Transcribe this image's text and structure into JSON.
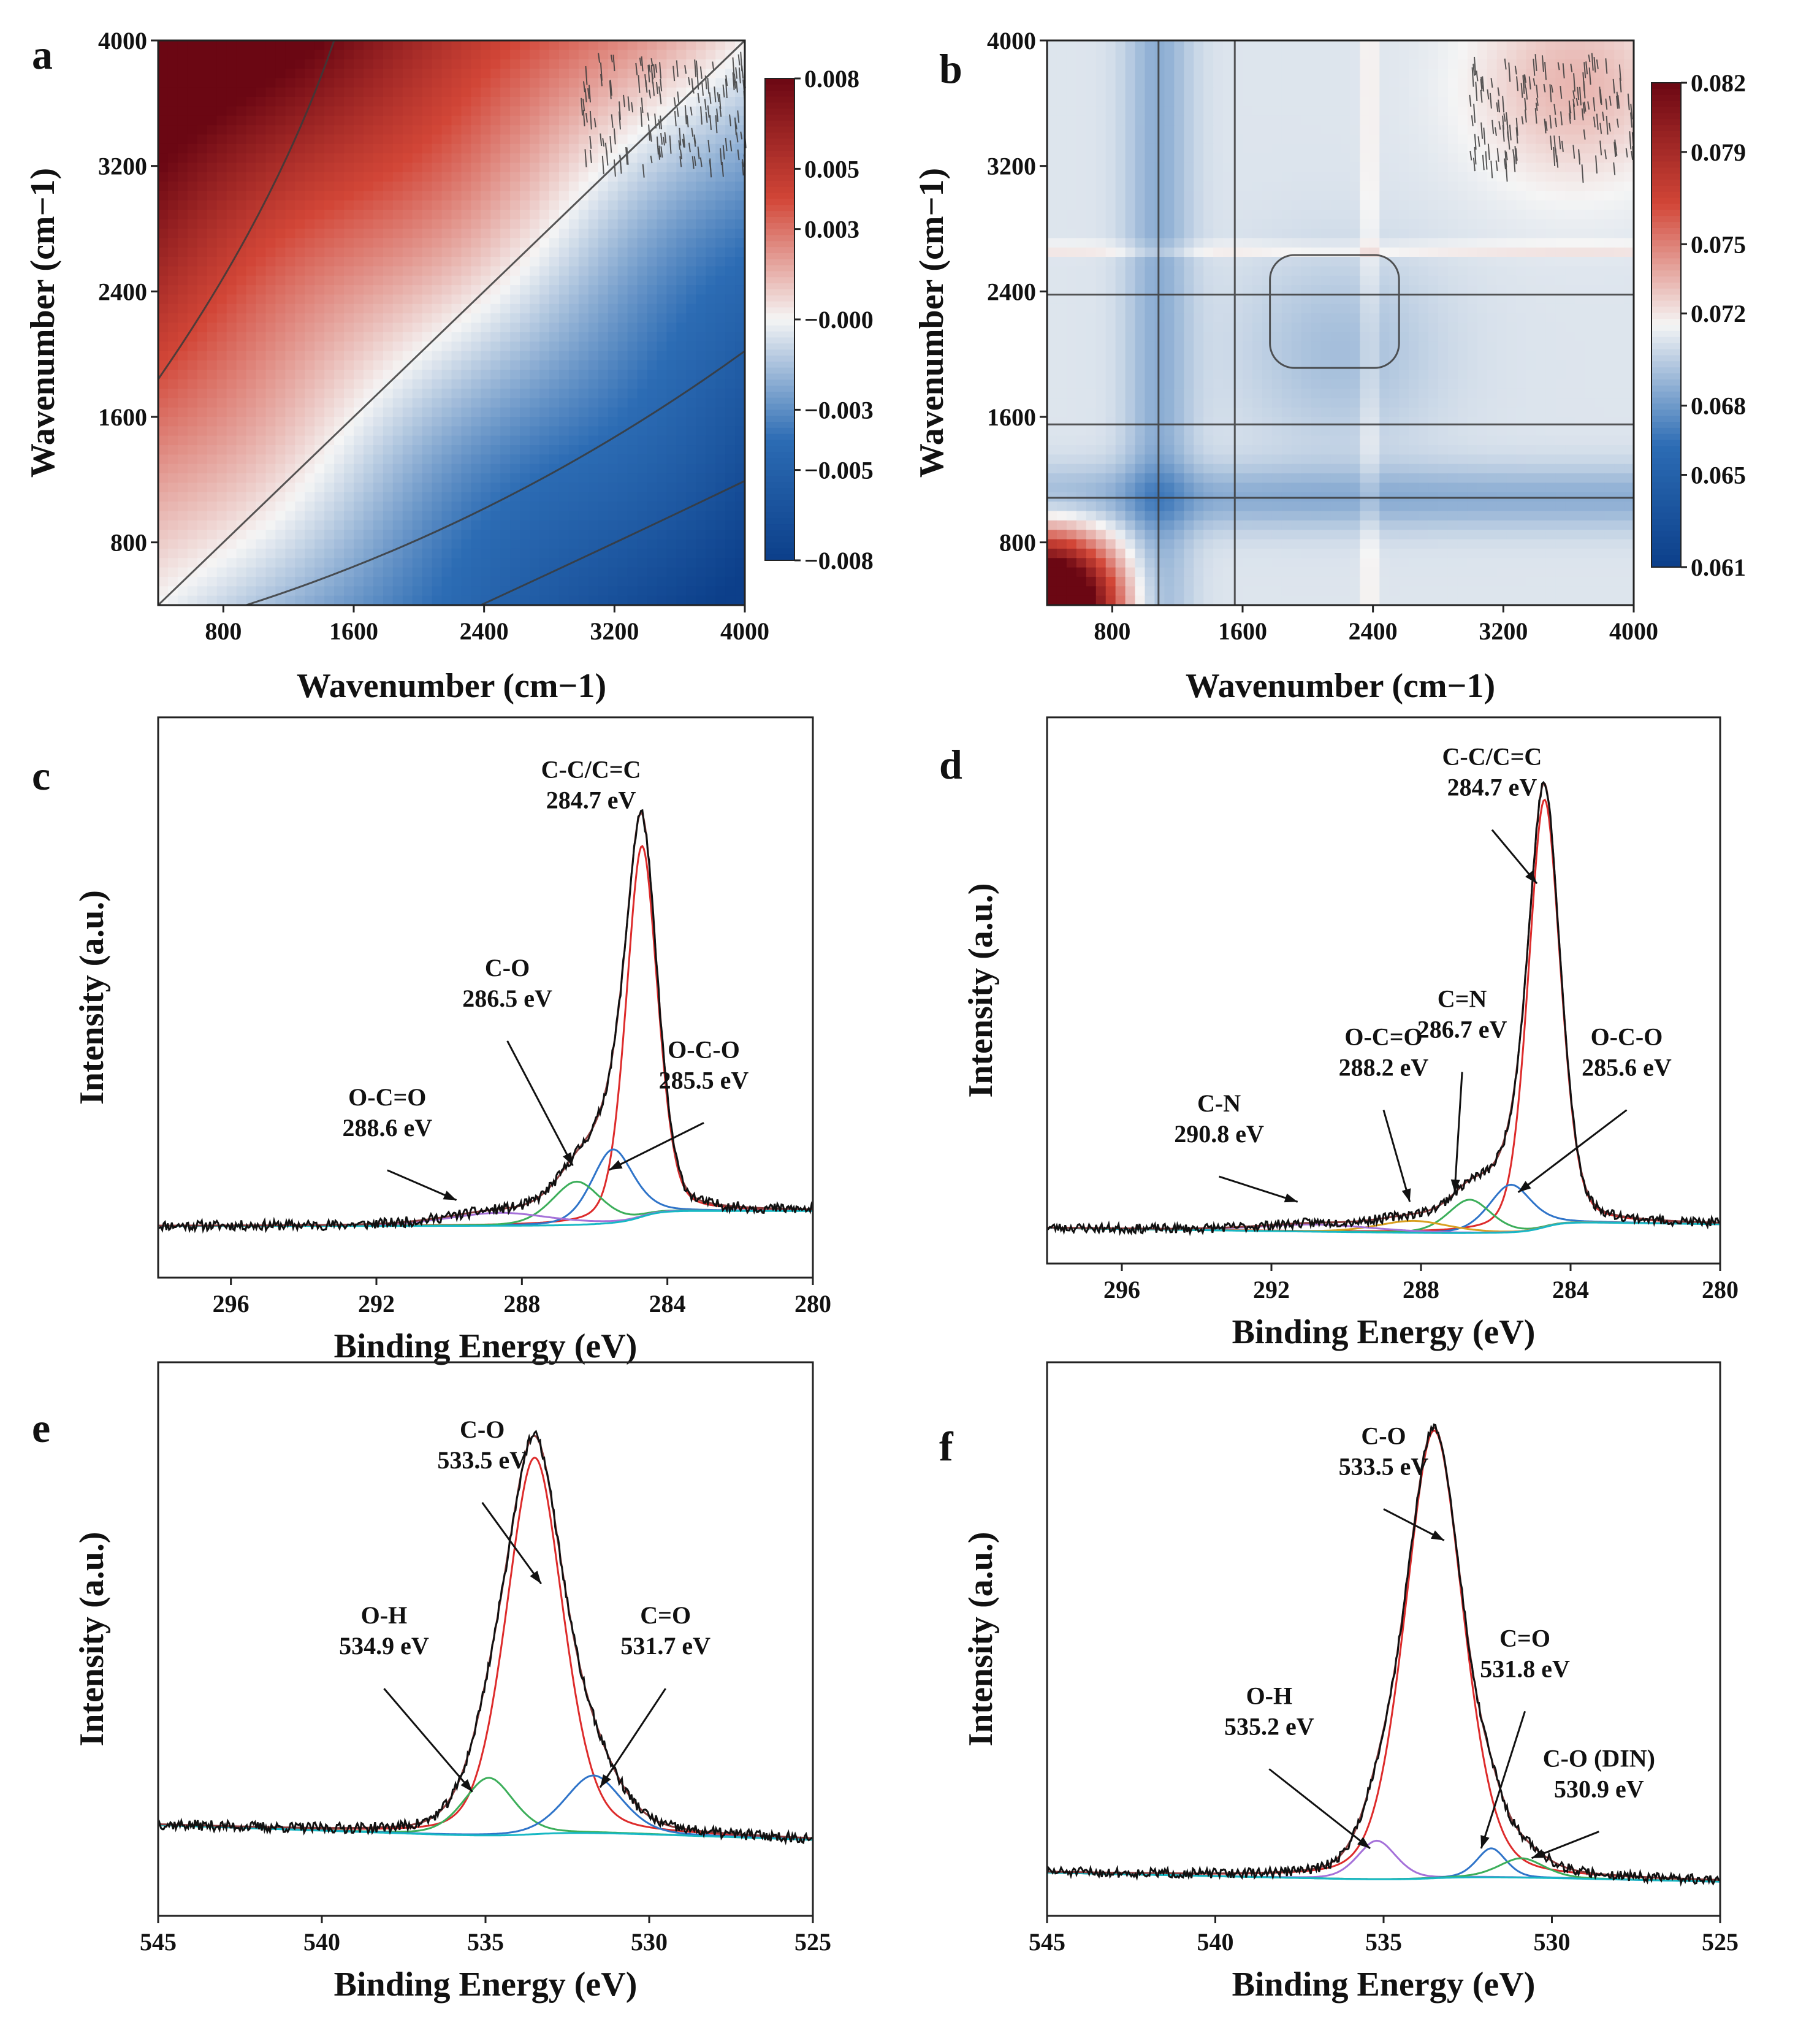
{
  "colors": {
    "red": "#dd2b2b",
    "blue": "#2f74c9",
    "green": "#3cae5a",
    "purple": "#a571d9",
    "orange": "#d9a020",
    "teal": "#17b8c4",
    "brown": "#8b3f3f",
    "data": "#111111",
    "map_low": "#0c3f8a",
    "map_mid": "#f5f5f5",
    "map_high": "#6b0713",
    "contour": "#3a3a3a"
  },
  "chart_data": [
    {
      "panel": "a",
      "type": "heatmap",
      "description_id": "2d-correlation-map-a",
      "xlabel": "Wavenumber (cm−1)",
      "ylabel": "Wavenumber (cm−1)",
      "xlim": [
        400,
        4000
      ],
      "ylim": [
        400,
        4000
      ],
      "xticks": [
        800,
        1600,
        2400,
        3200,
        4000
      ],
      "xtick_labels": [
        "800",
        "1600",
        "2400",
        "3200",
        "4000"
      ],
      "yticks": [
        800,
        1600,
        2400,
        3200,
        4000
      ],
      "ytick_labels": [
        "800",
        "1600",
        "2400",
        "3200",
        "4000"
      ],
      "colorbar": {
        "min": -0.008,
        "max": 0.008,
        "tick_values": [
          0.008,
          0.005,
          0.003,
          0.0,
          -0.003,
          -0.005,
          -0.008
        ],
        "tick_labels": [
          "0.008",
          "0.005",
          "0.003",
          "−0.000",
          "−0.003",
          "−0.005",
          "−0.008"
        ]
      },
      "pattern": "asynchronous"
    },
    {
      "panel": "b",
      "type": "heatmap",
      "description_id": "2d-correlation-map-b",
      "xlabel": "Wavenumber (cm−1)",
      "ylabel": "Wavenumber (cm−1)",
      "xlim": [
        400,
        4000
      ],
      "ylim": [
        400,
        4000
      ],
      "xticks": [
        800,
        1600,
        2400,
        3200,
        4000
      ],
      "xtick_labels": [
        "800",
        "1600",
        "2400",
        "3200",
        "4000"
      ],
      "yticks": [
        800,
        1600,
        2400,
        3200,
        4000
      ],
      "ytick_labels": [
        "800",
        "1600",
        "2400",
        "3200",
        "4000"
      ],
      "colorbar": {
        "min": 0.061,
        "max": 0.082,
        "tick_values": [
          0.082,
          0.079,
          0.075,
          0.072,
          0.068,
          0.065,
          0.061
        ],
        "tick_labels": [
          "0.082",
          "0.079",
          "0.075",
          "0.072",
          "0.068",
          "0.065",
          "0.061"
        ]
      },
      "pattern": "synchronous"
    },
    {
      "panel": "c",
      "type": "line",
      "xlabel": "Binding Energy (eV)",
      "ylabel": "Intensity (a.u.)",
      "xlim": [
        298,
        280
      ],
      "xticks": [
        296,
        292,
        288,
        284,
        280
      ],
      "xtick_labels": [
        "296",
        "292",
        "288",
        "284",
        "280"
      ],
      "ylim": [
        -0.15,
        1.15
      ],
      "baseline": {
        "left": 0.0,
        "right": 0.0,
        "shirley": 0.06
      },
      "noise": 0.012,
      "seed": 11,
      "peaks": [
        {
          "name": "C-C/C=C",
          "center": 284.7,
          "height": 0.86,
          "width": 0.45,
          "color": "#dd2b2b"
        },
        {
          "name": "O-C-O",
          "center": 285.5,
          "height": 0.17,
          "width": 0.6,
          "color": "#2f74c9"
        },
        {
          "name": "C-O",
          "center": 286.5,
          "height": 0.1,
          "width": 0.7,
          "color": "#3cae5a"
        },
        {
          "name": "O-C=O",
          "center": 288.6,
          "height": 0.03,
          "width": 1.5,
          "color": "#a571d9"
        }
      ],
      "annotations": [
        {
          "lines": [
            "C-C/C=C",
            "284.7 eV"
          ],
          "text_at": [
            286.1,
            1.01
          ],
          "arrow_to": null
        },
        {
          "lines": [
            "C-O",
            "286.5 eV"
          ],
          "text_at": [
            288.4,
            0.55
          ],
          "arrow_to": [
            286.6,
            0.11
          ]
        },
        {
          "lines": [
            "O-C-O",
            "285.5 eV"
          ],
          "text_at": [
            283.0,
            0.36
          ],
          "arrow_to": [
            285.6,
            0.1
          ]
        },
        {
          "lines": [
            "O-C=O",
            "288.6 eV"
          ],
          "text_at": [
            291.7,
            0.25
          ],
          "arrow_to": [
            289.8,
            0.03
          ]
        }
      ]
    },
    {
      "panel": "d",
      "type": "line",
      "xlabel": "Binding Energy (eV)",
      "ylabel": "Intensity (a.u.)",
      "xlim": [
        298,
        280
      ],
      "xticks": [
        296,
        292,
        288,
        284,
        280
      ],
      "xtick_labels": [
        "296",
        "292",
        "288",
        "284",
        "280"
      ],
      "ylim": [
        -0.1,
        1.05
      ],
      "baseline": {
        "left": 0.0,
        "right": -0.02,
        "shirley": 0.05
      },
      "noise": 0.01,
      "seed": 23,
      "peaks": [
        {
          "name": "C-C/C=C",
          "center": 284.7,
          "height": 0.9,
          "width": 0.45,
          "color": "#dd2b2b"
        },
        {
          "name": "O-C-O",
          "center": 285.6,
          "height": 0.1,
          "width": 0.6,
          "color": "#2f74c9"
        },
        {
          "name": "C=N",
          "center": 286.7,
          "height": 0.07,
          "width": 0.6,
          "color": "#3cae5a"
        },
        {
          "name": "O-C=O",
          "center": 288.2,
          "height": 0.025,
          "width": 1.0,
          "color": "#d9a020"
        },
        {
          "name": "C-N",
          "center": 290.8,
          "height": 0.015,
          "width": 1.6,
          "color": "#a571d9"
        }
      ],
      "annotations": [
        {
          "lines": [
            "C-C/C=C",
            "284.7 eV"
          ],
          "text_at": [
            286.1,
            0.95
          ],
          "arrow_to": [
            284.9,
            0.7
          ]
        },
        {
          "lines": [
            "C=N",
            "286.7 eV"
          ],
          "text_at": [
            286.9,
            0.44
          ],
          "arrow_to": [
            287.1,
            0.05
          ]
        },
        {
          "lines": [
            "O-C=O",
            "288.2 eV"
          ],
          "text_at": [
            289.0,
            0.36
          ],
          "arrow_to": [
            288.3,
            0.03
          ]
        },
        {
          "lines": [
            "O-C-O",
            "285.6 eV"
          ],
          "text_at": [
            282.5,
            0.36
          ],
          "arrow_to": [
            285.4,
            0.05
          ]
        },
        {
          "lines": [
            "C-N",
            "290.8 eV"
          ],
          "text_at": [
            293.4,
            0.22
          ],
          "arrow_to": [
            291.3,
            0.03
          ]
        }
      ]
    },
    {
      "panel": "e",
      "type": "line",
      "xlabel": "Binding Energy (eV)",
      "ylabel": "Intensity (a.u.)",
      "xlim": [
        545,
        525
      ],
      "xticks": [
        545,
        540,
        535,
        530,
        525
      ],
      "xtick_labels": [
        "545",
        "540",
        "535",
        "530",
        "525"
      ],
      "ylim": [
        -0.2,
        1.05
      ],
      "baseline": {
        "left": 0.02,
        "right": -0.03,
        "shirley": 0.03
      },
      "noise": 0.012,
      "seed": 37,
      "peaks": [
        {
          "name": "C-O",
          "center": 533.5,
          "height": 0.85,
          "width": 0.9,
          "color": "#dd2b2b"
        },
        {
          "name": "O-H",
          "center": 534.9,
          "height": 0.13,
          "width": 0.8,
          "color": "#3cae5a"
        },
        {
          "name": "C=O",
          "center": 531.7,
          "height": 0.13,
          "width": 0.9,
          "color": "#2f74c9"
        }
      ],
      "annotations": [
        {
          "lines": [
            "C-O",
            "533.5 eV"
          ],
          "text_at": [
            535.1,
            0.88
          ],
          "arrow_to": [
            533.3,
            0.55
          ]
        },
        {
          "lines": [
            "O-H",
            "534.9 eV"
          ],
          "text_at": [
            538.1,
            0.46
          ],
          "arrow_to": [
            535.4,
            0.08
          ]
        },
        {
          "lines": [
            "C=O",
            "531.7 eV"
          ],
          "text_at": [
            529.5,
            0.46
          ],
          "arrow_to": [
            531.5,
            0.09
          ]
        }
      ]
    },
    {
      "panel": "f",
      "type": "line",
      "xlabel": "Binding Energy (eV)",
      "ylabel": "Intensity (a.u.)",
      "xlim": [
        545,
        525
      ],
      "xticks": [
        545,
        540,
        535,
        530,
        525
      ],
      "xtick_labels": [
        "545",
        "540",
        "535",
        "530",
        "525"
      ],
      "ylim": [
        -0.1,
        1.05
      ],
      "baseline": {
        "left": 0.0,
        "right": -0.03,
        "shirley": 0.02
      },
      "noise": 0.01,
      "seed": 51,
      "peaks": [
        {
          "name": "C-O",
          "center": 533.5,
          "height": 0.93,
          "width": 0.9,
          "color": "#dd2b2b"
        },
        {
          "name": "O-H",
          "center": 535.2,
          "height": 0.08,
          "width": 0.6,
          "color": "#a571d9"
        },
        {
          "name": "C=O",
          "center": 531.8,
          "height": 0.06,
          "width": 0.45,
          "color": "#2f74c9"
        },
        {
          "name": "C-O (DIN)",
          "center": 530.9,
          "height": 0.04,
          "width": 0.7,
          "color": "#3cae5a"
        }
      ],
      "annotations": [
        {
          "lines": [
            "C-O",
            "533.5 eV"
          ],
          "text_at": [
            535.0,
            0.88
          ],
          "arrow_to": [
            533.2,
            0.68
          ]
        },
        {
          "lines": [
            "O-H",
            "535.2 eV"
          ],
          "text_at": [
            538.4,
            0.34
          ],
          "arrow_to": [
            535.4,
            0.04
          ]
        },
        {
          "lines": [
            "C=O",
            "531.8 eV"
          ],
          "text_at": [
            530.8,
            0.46
          ],
          "arrow_to": [
            532.1,
            0.04
          ]
        },
        {
          "lines": [
            "C-O (DIN)",
            "530.9 eV"
          ],
          "text_at": [
            528.6,
            0.21
          ],
          "arrow_to": [
            530.6,
            0.02
          ]
        }
      ]
    }
  ]
}
